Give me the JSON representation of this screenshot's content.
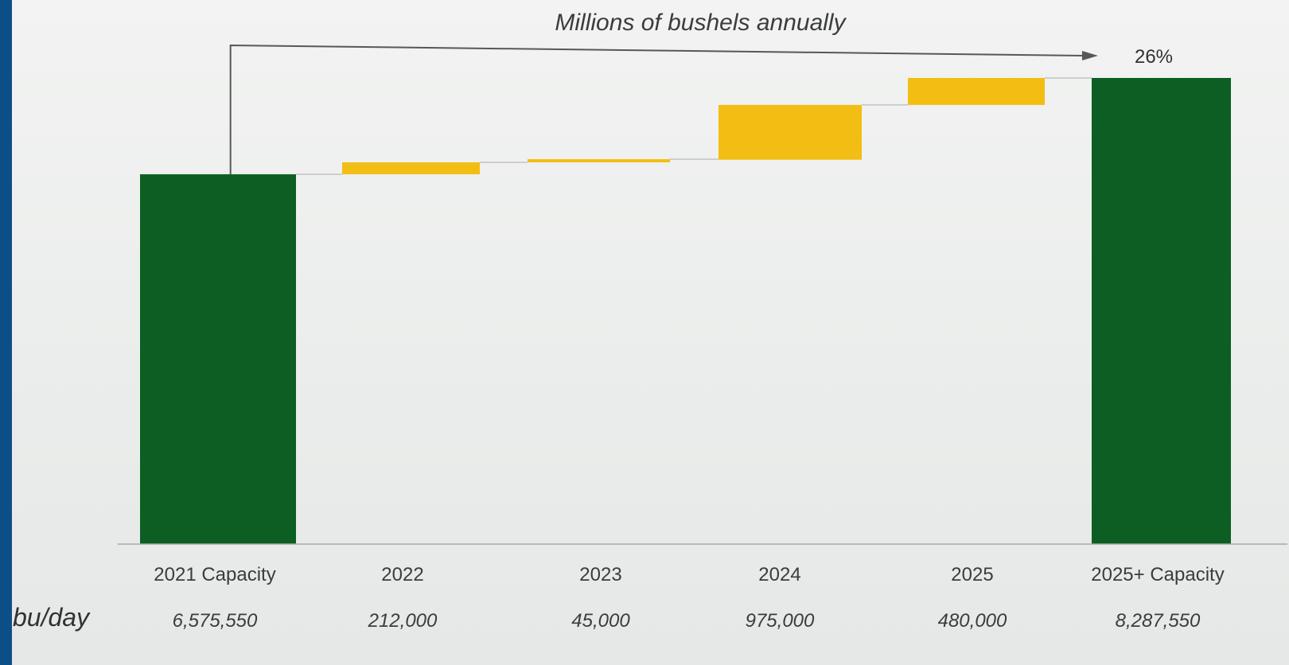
{
  "chart_data": {
    "type": "bar",
    "subtype": "waterfall",
    "title": "Millions of bushels annually",
    "categories": [
      "2021 Capacity",
      "2022",
      "2023",
      "2024",
      "2025",
      "2025+ Capacity"
    ],
    "values": [
      6575550,
      212000,
      45000,
      975000,
      480000,
      8287550
    ],
    "bar_kinds": [
      "total",
      "increment",
      "increment",
      "increment",
      "increment",
      "total"
    ],
    "row_label": "bu/day",
    "value_labels": [
      "6,575,550",
      "212,000",
      "45,000",
      "975,000",
      "480,000",
      "8,287,550"
    ],
    "growth_label": "26%",
    "ylim": [
      0,
      8287550
    ],
    "grid": false,
    "colors": {
      "total": "#0d5e22",
      "increment": "#f2be14",
      "axis": "#9a9e9c",
      "text": "#3a3d3c"
    }
  }
}
